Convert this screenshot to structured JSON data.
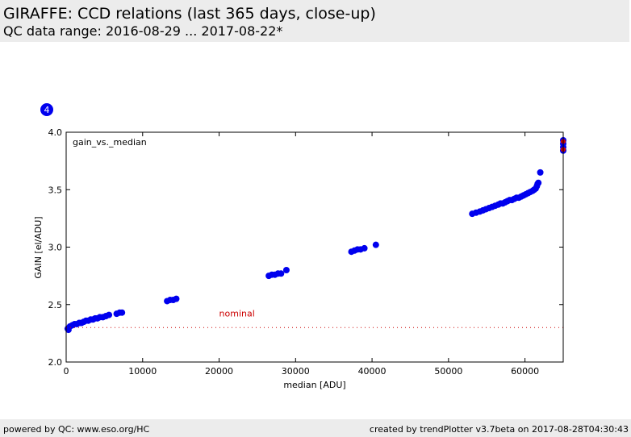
{
  "header": {
    "title": "GIRAFFE: CCD relations (last 365 days, close-up)",
    "subtitle": "QC data range: 2016-08-29 ... 2017-08-22*"
  },
  "footer": {
    "left": "powered by QC: www.eso.org/HC",
    "right": "created by trendPlotter v3.7beta on 2017-08-28T04:30:43"
  },
  "chart_data": {
    "type": "scatter",
    "panel_badge": "4",
    "annotation": "gain_vs._median",
    "xlabel": "median [ADU]",
    "ylabel": "GAIN [el/ADU]",
    "xlim": [
      0,
      65000
    ],
    "ylim": [
      2.0,
      4.0
    ],
    "x_ticks": [
      0,
      10000,
      20000,
      30000,
      40000,
      50000,
      60000
    ],
    "y_ticks": [
      2.0,
      2.5,
      3.0,
      3.5,
      4.0
    ],
    "grid": false,
    "reference_line": {
      "label": "nominal",
      "value": 2.3,
      "color": "#cc0000"
    },
    "colors": {
      "points": "#0000ee",
      "highlight": "#cc0000"
    },
    "series": [
      {
        "values": [
          [
            200,
            2.29
          ],
          [
            300,
            2.28
          ],
          [
            500,
            2.31
          ],
          [
            800,
            2.32
          ],
          [
            1100,
            2.33
          ],
          [
            1400,
            2.33
          ],
          [
            1700,
            2.34
          ],
          [
            2000,
            2.34
          ],
          [
            2300,
            2.35
          ],
          [
            2600,
            2.36
          ],
          [
            2900,
            2.36
          ],
          [
            3200,
            2.37
          ],
          [
            3500,
            2.37
          ],
          [
            3800,
            2.38
          ],
          [
            4100,
            2.38
          ],
          [
            4400,
            2.39
          ],
          [
            4800,
            2.39
          ],
          [
            5200,
            2.4
          ],
          [
            5600,
            2.41
          ],
          [
            6600,
            2.42
          ],
          [
            7000,
            2.43
          ],
          [
            7300,
            2.43
          ],
          [
            13200,
            2.53
          ],
          [
            13600,
            2.54
          ],
          [
            14000,
            2.54
          ],
          [
            14400,
            2.55
          ],
          [
            26500,
            2.75
          ],
          [
            26900,
            2.76
          ],
          [
            27300,
            2.76
          ],
          [
            27700,
            2.77
          ],
          [
            28100,
            2.77
          ],
          [
            28800,
            2.8
          ],
          [
            37300,
            2.96
          ],
          [
            37700,
            2.97
          ],
          [
            38100,
            2.98
          ],
          [
            38500,
            2.98
          ],
          [
            39000,
            2.99
          ],
          [
            40500,
            3.02
          ],
          [
            53100,
            3.29
          ],
          [
            53600,
            3.3
          ],
          [
            54100,
            3.31
          ],
          [
            54500,
            3.32
          ],
          [
            54900,
            3.33
          ],
          [
            55300,
            3.34
          ],
          [
            55700,
            3.35
          ],
          [
            56100,
            3.36
          ],
          [
            56500,
            3.37
          ],
          [
            56800,
            3.38
          ],
          [
            57100,
            3.38
          ],
          [
            57400,
            3.39
          ],
          [
            57700,
            3.4
          ],
          [
            58000,
            3.41
          ],
          [
            58300,
            3.41
          ],
          [
            58600,
            3.42
          ],
          [
            58900,
            3.43
          ],
          [
            59200,
            3.43
          ],
          [
            59500,
            3.44
          ],
          [
            59800,
            3.45
          ],
          [
            60100,
            3.46
          ],
          [
            60400,
            3.47
          ],
          [
            60700,
            3.48
          ],
          [
            61000,
            3.49
          ],
          [
            61200,
            3.5
          ],
          [
            61400,
            3.51
          ],
          [
            61550,
            3.53
          ],
          [
            61650,
            3.55
          ],
          [
            61750,
            3.56
          ],
          [
            62000,
            3.65
          ],
          [
            65000,
            3.84
          ],
          [
            65000,
            3.87
          ],
          [
            65000,
            3.9
          ],
          [
            65000,
            3.93
          ]
        ],
        "highlight": [
          [
            65000,
            3.92
          ],
          [
            65000,
            3.85
          ]
        ]
      }
    ]
  }
}
